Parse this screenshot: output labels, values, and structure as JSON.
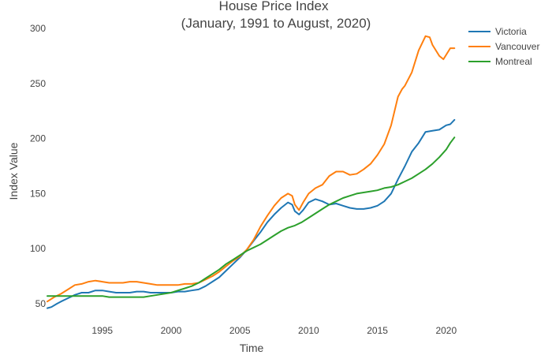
{
  "chart_data": {
    "type": "line",
    "title": "House Price Index",
    "subtitle": "(January, 1991 to August, 2020)",
    "xlabel": "Time",
    "ylabel": "Index Value",
    "xlim": [
      1991.0,
      2020.7
    ],
    "ylim": [
      50,
      300
    ],
    "x_ticks": [
      1995,
      2000,
      2005,
      2010,
      2015,
      2020
    ],
    "x_tick_labels": [
      "1995",
      "2000",
      "2005",
      "2010",
      "2015",
      "2020"
    ],
    "y_ticks": [
      50,
      100,
      150,
      200,
      250,
      300
    ],
    "y_tick_labels": [
      "50",
      "100",
      "150",
      "200",
      "250",
      "300"
    ],
    "grid": false,
    "legend_position": "top-right",
    "series": [
      {
        "name": "Victoria",
        "color": "#1f77b4",
        "points": [
          [
            1991.0,
            46
          ],
          [
            1991.3,
            47
          ],
          [
            1991.7,
            50
          ],
          [
            1992.0,
            52
          ],
          [
            1992.5,
            55
          ],
          [
            1993.0,
            58
          ],
          [
            1993.5,
            60
          ],
          [
            1994.0,
            60
          ],
          [
            1994.5,
            62
          ],
          [
            1995.0,
            62
          ],
          [
            1995.5,
            61
          ],
          [
            1996.0,
            60
          ],
          [
            1996.5,
            60
          ],
          [
            1997.0,
            60
          ],
          [
            1997.5,
            61
          ],
          [
            1998.0,
            61
          ],
          [
            1998.5,
            60
          ],
          [
            1999.0,
            60
          ],
          [
            1999.5,
            60
          ],
          [
            2000.0,
            60
          ],
          [
            2000.5,
            61
          ],
          [
            2001.0,
            61
          ],
          [
            2001.5,
            62
          ],
          [
            2002.0,
            63
          ],
          [
            2002.5,
            66
          ],
          [
            2003.0,
            70
          ],
          [
            2003.5,
            74
          ],
          [
            2004.0,
            80
          ],
          [
            2004.5,
            86
          ],
          [
            2005.0,
            92
          ],
          [
            2005.5,
            99
          ],
          [
            2006.0,
            107
          ],
          [
            2006.5,
            115
          ],
          [
            2007.0,
            124
          ],
          [
            2007.5,
            131
          ],
          [
            2008.0,
            137
          ],
          [
            2008.5,
            142
          ],
          [
            2008.8,
            140
          ],
          [
            2009.0,
            134
          ],
          [
            2009.3,
            131
          ],
          [
            2009.6,
            135
          ],
          [
            2010.0,
            142
          ],
          [
            2010.5,
            145
          ],
          [
            2011.0,
            143
          ],
          [
            2011.5,
            140
          ],
          [
            2012.0,
            141
          ],
          [
            2012.5,
            139
          ],
          [
            2013.0,
            137
          ],
          [
            2013.5,
            136
          ],
          [
            2014.0,
            136
          ],
          [
            2014.5,
            137
          ],
          [
            2015.0,
            139
          ],
          [
            2015.5,
            143
          ],
          [
            2016.0,
            150
          ],
          [
            2016.5,
            163
          ],
          [
            2017.0,
            175
          ],
          [
            2017.5,
            188
          ],
          [
            2018.0,
            196
          ],
          [
            2018.5,
            206
          ],
          [
            2019.0,
            207
          ],
          [
            2019.5,
            208
          ],
          [
            2020.0,
            212
          ],
          [
            2020.3,
            213
          ],
          [
            2020.6,
            217
          ]
        ]
      },
      {
        "name": "Vancouver",
        "color": "#ff7f0e",
        "points": [
          [
            1991.0,
            52
          ],
          [
            1991.5,
            56
          ],
          [
            1992.0,
            59
          ],
          [
            1992.5,
            63
          ],
          [
            1993.0,
            67
          ],
          [
            1993.5,
            68
          ],
          [
            1994.0,
            70
          ],
          [
            1994.5,
            71
          ],
          [
            1995.0,
            70
          ],
          [
            1995.5,
            69
          ],
          [
            1996.0,
            69
          ],
          [
            1996.5,
            69
          ],
          [
            1997.0,
            70
          ],
          [
            1997.5,
            70
          ],
          [
            1998.0,
            69
          ],
          [
            1998.5,
            68
          ],
          [
            1999.0,
            67
          ],
          [
            1999.5,
            67
          ],
          [
            2000.0,
            67
          ],
          [
            2000.5,
            67
          ],
          [
            2001.0,
            68
          ],
          [
            2001.5,
            68
          ],
          [
            2002.0,
            69
          ],
          [
            2002.5,
            72
          ],
          [
            2003.0,
            75
          ],
          [
            2003.5,
            79
          ],
          [
            2004.0,
            84
          ],
          [
            2004.5,
            89
          ],
          [
            2005.0,
            93
          ],
          [
            2005.5,
            99
          ],
          [
            2006.0,
            108
          ],
          [
            2006.5,
            120
          ],
          [
            2007.0,
            130
          ],
          [
            2007.5,
            139
          ],
          [
            2008.0,
            146
          ],
          [
            2008.5,
            150
          ],
          [
            2008.8,
            148
          ],
          [
            2009.0,
            140
          ],
          [
            2009.3,
            135
          ],
          [
            2009.6,
            142
          ],
          [
            2010.0,
            150
          ],
          [
            2010.5,
            155
          ],
          [
            2011.0,
            158
          ],
          [
            2011.5,
            166
          ],
          [
            2012.0,
            170
          ],
          [
            2012.5,
            170
          ],
          [
            2013.0,
            167
          ],
          [
            2013.5,
            168
          ],
          [
            2014.0,
            172
          ],
          [
            2014.5,
            177
          ],
          [
            2015.0,
            185
          ],
          [
            2015.5,
            195
          ],
          [
            2016.0,
            212
          ],
          [
            2016.5,
            238
          ],
          [
            2016.8,
            245
          ],
          [
            2017.0,
            248
          ],
          [
            2017.5,
            260
          ],
          [
            2018.0,
            280
          ],
          [
            2018.5,
            293
          ],
          [
            2018.8,
            292
          ],
          [
            2019.0,
            285
          ],
          [
            2019.5,
            275
          ],
          [
            2019.8,
            272
          ],
          [
            2020.0,
            276
          ],
          [
            2020.3,
            282
          ],
          [
            2020.6,
            282
          ]
        ]
      },
      {
        "name": "Montreal",
        "color": "#2ca02c",
        "points": [
          [
            1991.0,
            57
          ],
          [
            1991.5,
            57
          ],
          [
            1992.0,
            57
          ],
          [
            1992.5,
            57
          ],
          [
            1993.0,
            57
          ],
          [
            1993.5,
            57
          ],
          [
            1994.0,
            57
          ],
          [
            1994.5,
            57
          ],
          [
            1995.0,
            57
          ],
          [
            1995.5,
            56
          ],
          [
            1996.0,
            56
          ],
          [
            1996.5,
            56
          ],
          [
            1997.0,
            56
          ],
          [
            1997.5,
            56
          ],
          [
            1998.0,
            56
          ],
          [
            1998.5,
            57
          ],
          [
            1999.0,
            58
          ],
          [
            1999.5,
            59
          ],
          [
            2000.0,
            60
          ],
          [
            2000.5,
            62
          ],
          [
            2001.0,
            64
          ],
          [
            2001.5,
            66
          ],
          [
            2002.0,
            69
          ],
          [
            2002.5,
            73
          ],
          [
            2003.0,
            77
          ],
          [
            2003.5,
            81
          ],
          [
            2004.0,
            86
          ],
          [
            2004.5,
            90
          ],
          [
            2005.0,
            94
          ],
          [
            2005.5,
            98
          ],
          [
            2006.0,
            101
          ],
          [
            2006.5,
            104
          ],
          [
            2007.0,
            108
          ],
          [
            2007.5,
            112
          ],
          [
            2008.0,
            116
          ],
          [
            2008.5,
            119
          ],
          [
            2009.0,
            121
          ],
          [
            2009.5,
            124
          ],
          [
            2010.0,
            128
          ],
          [
            2010.5,
            132
          ],
          [
            2011.0,
            136
          ],
          [
            2011.5,
            140
          ],
          [
            2012.0,
            143
          ],
          [
            2012.5,
            146
          ],
          [
            2013.0,
            148
          ],
          [
            2013.5,
            150
          ],
          [
            2014.0,
            151
          ],
          [
            2014.5,
            152
          ],
          [
            2015.0,
            153
          ],
          [
            2015.5,
            155
          ],
          [
            2016.0,
            156
          ],
          [
            2016.5,
            158
          ],
          [
            2017.0,
            161
          ],
          [
            2017.5,
            164
          ],
          [
            2018.0,
            168
          ],
          [
            2018.5,
            172
          ],
          [
            2019.0,
            177
          ],
          [
            2019.5,
            183
          ],
          [
            2020.0,
            190
          ],
          [
            2020.3,
            196
          ],
          [
            2020.6,
            201
          ]
        ]
      }
    ]
  }
}
